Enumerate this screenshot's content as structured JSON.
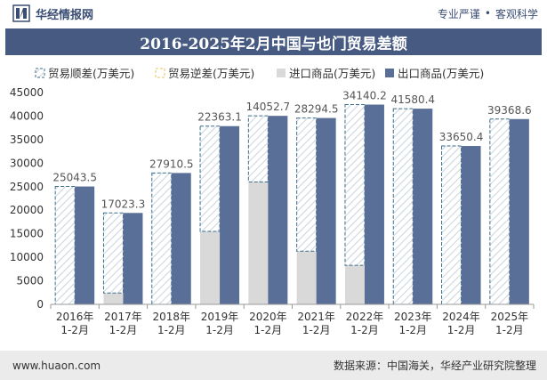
{
  "header": {
    "brand": "华经情报网",
    "tag1": "专业严谨",
    "tag2": "客观科学"
  },
  "title": "2016-2025年2月中国与也门贸易差额",
  "footer": {
    "url": "www.huaon.com",
    "source": "数据来源：中国海关，华经产业研究院整理"
  },
  "colors": {
    "surplus_stroke": "#3d6e8a",
    "deficit_stroke": "#e4c35a",
    "import": "#d9d9d9",
    "export": "#5a6f97",
    "header_bg": "#475b82"
  },
  "chart_data": {
    "type": "bar",
    "categories": [
      "2016年\n1-2月",
      "2017年\n1-2月",
      "2018年\n1-2月",
      "2019年\n1-2月",
      "2020年\n1-2月",
      "2021年\n1-2月",
      "2022年\n1-2月",
      "2023年\n1-2月",
      "2024年\n1-2月",
      "2025年\n1-2月"
    ],
    "series": [
      {
        "name": "贸易顺差(万美元)",
        "values": [
          25043.5,
          17023.3,
          27910.5,
          22363.1,
          14052.7,
          28294.5,
          34140.2,
          41580.4,
          33650.4,
          39368.6
        ]
      },
      {
        "name": "贸易逆差(万美元)",
        "values": [
          null,
          null,
          null,
          null,
          null,
          null,
          null,
          null,
          null,
          null
        ]
      },
      {
        "name": "进口商品(万美元)",
        "values": [
          0,
          2400,
          0,
          15500,
          26000,
          11300,
          8300,
          0,
          0,
          0
        ]
      },
      {
        "name": "出口商品(万美元)",
        "values": [
          25043.5,
          19423.3,
          27910.5,
          37863.1,
          40052.7,
          39594.5,
          42440.2,
          41580.4,
          33650.4,
          39368.6
        ]
      }
    ],
    "data_labels": [
      "25043.5",
      "17023.3",
      "27910.5",
      "22363.1",
      "14052.7",
      "28294.5",
      "34140.2",
      "41580.4",
      "33650.4",
      "39368.6"
    ],
    "y_ticks": [
      0,
      5000,
      10000,
      15000,
      20000,
      25000,
      30000,
      35000,
      40000,
      45000
    ],
    "ylim": [
      0,
      45000
    ],
    "legend_position": "top"
  }
}
